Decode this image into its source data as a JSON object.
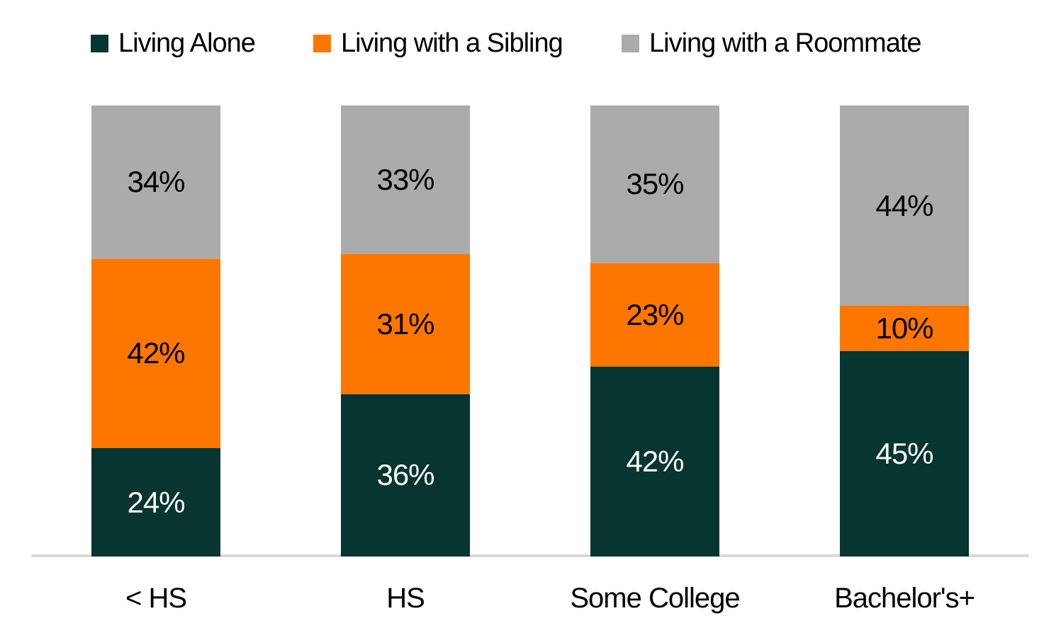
{
  "chart_data": {
    "type": "bar",
    "stacked": true,
    "orientation": "vertical",
    "title": "",
    "xlabel": "",
    "ylabel": "",
    "ylim": [
      0,
      100
    ],
    "grid": false,
    "legend_position": "top",
    "value_suffix": "%",
    "data_labels": true,
    "axis_line_color": "#d9d9d9",
    "background_color": "#ffffff",
    "categories": [
      "< HS",
      "HS",
      "Some College",
      "Bachelor's+"
    ],
    "series": [
      {
        "name": "Living Alone",
        "color": "#073530",
        "label_color": "#ffffff",
        "values": [
          24,
          36,
          42,
          45
        ]
      },
      {
        "name": "Living with a Sibling",
        "color": "#fd7600",
        "label_color": "#000000",
        "values": [
          42,
          31,
          23,
          10
        ]
      },
      {
        "name": "Living with a Roommate",
        "color": "#ababab",
        "label_color": "#000000",
        "values": [
          34,
          33,
          35,
          44
        ]
      }
    ]
  }
}
